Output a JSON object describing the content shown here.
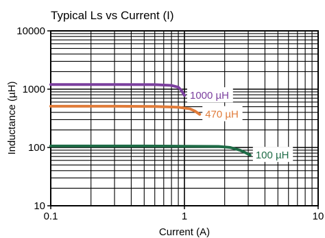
{
  "chart_data": {
    "type": "line",
    "title": "Typical Ls vs Current (I)",
    "xlabel": "Current (A)",
    "ylabel": "Inductance (µH)",
    "x_scale": "log",
    "y_scale": "log",
    "xlim": [
      0.1,
      10
    ],
    "ylim": [
      10,
      10000
    ],
    "x_ticks": [
      "0.1",
      "1",
      "10"
    ],
    "y_ticks": [
      "10",
      "100",
      "1000",
      "10000"
    ],
    "grid": true,
    "legend": "none",
    "series": [
      {
        "name": "1000 µH",
        "color": "#7b3f9e",
        "points": [
          [
            0.1,
            1200
          ],
          [
            0.3,
            1200
          ],
          [
            0.6,
            1195
          ],
          [
            0.8,
            1160
          ],
          [
            0.9,
            1080
          ],
          [
            0.95,
            950
          ],
          [
            1.0,
            780
          ]
        ]
      },
      {
        "name": "470 µH",
        "color": "#e07b39",
        "points": [
          [
            0.1,
            510
          ],
          [
            0.3,
            510
          ],
          [
            0.6,
            505
          ],
          [
            0.9,
            490
          ],
          [
            1.1,
            460
          ],
          [
            1.2,
            420
          ],
          [
            1.3,
            370
          ]
        ]
      },
      {
        "name": "100 µH",
        "color": "#1e6b46",
        "points": [
          [
            0.1,
            106
          ],
          [
            0.5,
            106
          ],
          [
            1.0,
            105
          ],
          [
            1.8,
            104
          ],
          [
            2.2,
            100
          ],
          [
            2.6,
            90
          ],
          [
            2.9,
            80
          ],
          [
            3.1,
            74
          ]
        ]
      }
    ]
  }
}
